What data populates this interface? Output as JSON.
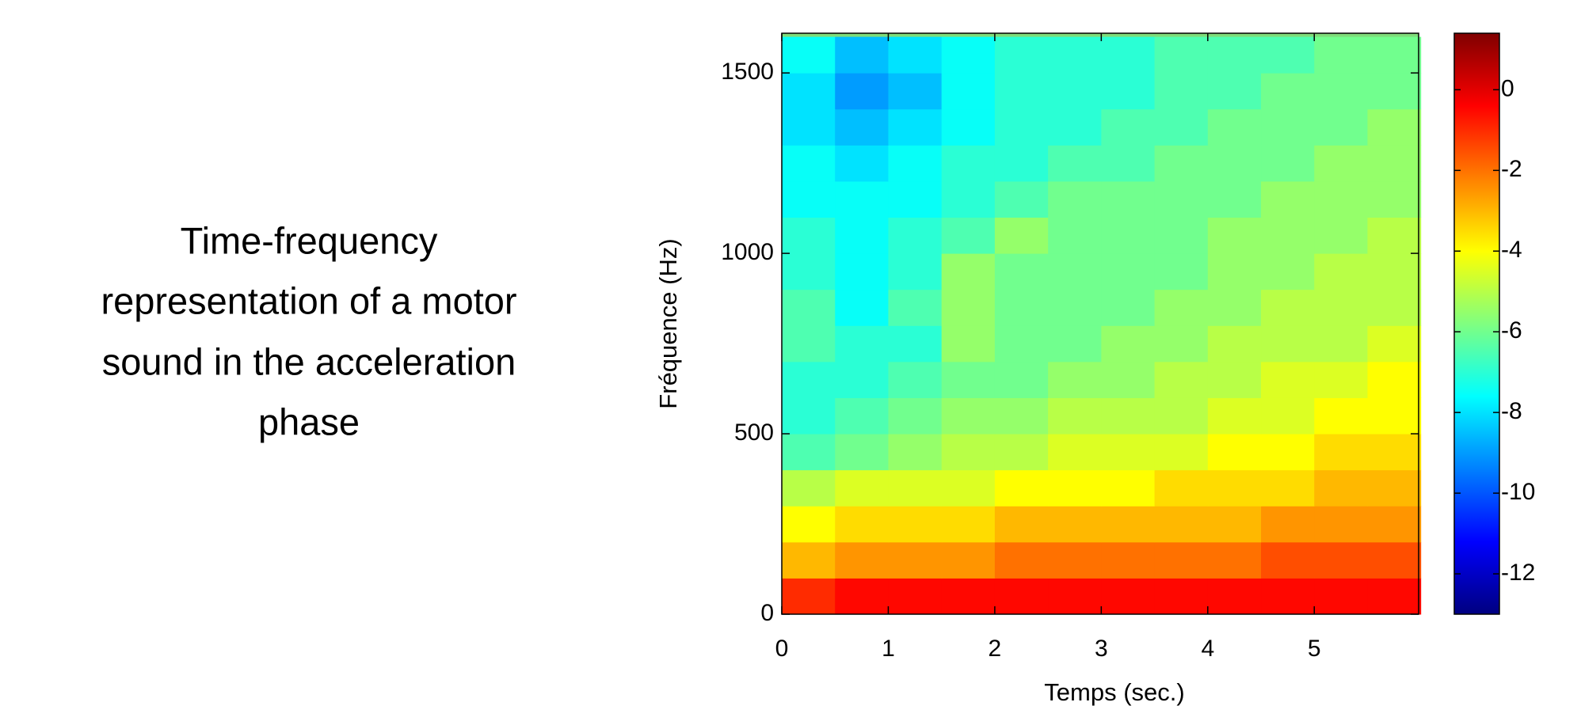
{
  "caption": [
    "Time-frequency",
    "representation of a motor",
    "sound in the acceleration",
    "phase"
  ],
  "chart_data": {
    "type": "heatmap",
    "colormap": "jet",
    "xlabel": "Temps (sec.)",
    "ylabel": "Fréquence (Hz)",
    "xlim": [
      0,
      5.98
    ],
    "ylim": [
      0,
      1610
    ],
    "xticks": [
      0,
      1,
      2,
      3,
      4,
      5
    ],
    "yticks": [
      0,
      500,
      1000,
      1500
    ],
    "x": [
      0.25,
      0.75,
      1.25,
      1.75,
      2.25,
      2.75,
      3.25,
      3.75,
      4.25,
      4.75,
      5.25,
      5.75
    ],
    "y": [
      50,
      150,
      250,
      350,
      450,
      550,
      650,
      750,
      850,
      950,
      1050,
      1150,
      1250,
      1350,
      1450,
      1550
    ],
    "z": [
      [
        -1,
        -0.5,
        -0.5,
        -0.5,
        -0.5,
        -0.5,
        -0.5,
        -0.5,
        -0.5,
        -0.5,
        -0.5,
        -0.5
      ],
      [
        -3,
        -2.5,
        -2.5,
        -2.5,
        -2,
        -2,
        -2,
        -2,
        -2,
        -1.5,
        -1.5,
        -1.5
      ],
      [
        -4,
        -3.5,
        -3.5,
        -3.5,
        -3,
        -3,
        -3,
        -3,
        -3,
        -2.5,
        -2.5,
        -2.5
      ],
      [
        -5,
        -4.5,
        -4.5,
        -4.5,
        -4,
        -4,
        -4,
        -3.5,
        -3.5,
        -3.5,
        -3,
        -3
      ],
      [
        -6.5,
        -6,
        -5.5,
        -5,
        -5,
        -4.5,
        -4.5,
        -4.5,
        -4,
        -4,
        -3.5,
        -3.5
      ],
      [
        -7,
        -6.5,
        -6,
        -5.5,
        -5.5,
        -5,
        -5,
        -5,
        -4.5,
        -4.5,
        -4,
        -4
      ],
      [
        -7,
        -7,
        -6.5,
        -6,
        -6,
        -5.5,
        -5.5,
        -5,
        -5,
        -4.5,
        -4.5,
        -4
      ],
      [
        -6.5,
        -7,
        -7,
        -5.5,
        -6,
        -6,
        -5.5,
        -5.5,
        -5,
        -5,
        -5,
        -4.5
      ],
      [
        -6.5,
        -7.5,
        -6.5,
        -5.5,
        -6,
        -6,
        -6,
        -5.5,
        -5.5,
        -5,
        -5,
        -5
      ],
      [
        -7,
        -7.5,
        -7,
        -5.5,
        -6,
        -6,
        -6,
        -6,
        -5.5,
        -5.5,
        -5,
        -5
      ],
      [
        -7,
        -7.5,
        -7,
        -6.5,
        -5.5,
        -6,
        -6,
        -6,
        -5.5,
        -5.5,
        -5.5,
        -5
      ],
      [
        -7.5,
        -7.5,
        -7.5,
        -7,
        -6.5,
        -6,
        -6,
        -6,
        -6,
        -5.5,
        -5.5,
        -5.5
      ],
      [
        -7.5,
        -8,
        -7.5,
        -7,
        -7,
        -6.5,
        -6.5,
        -6,
        -6,
        -6,
        -5.5,
        -5.5
      ],
      [
        -8,
        -8.5,
        -8,
        -7.5,
        -7,
        -7,
        -6.5,
        -6.5,
        -6,
        -6,
        -6,
        -5.5
      ],
      [
        -8,
        -9,
        -8.5,
        -7.5,
        -7,
        -7,
        -7,
        -6.5,
        -6.5,
        -6,
        -6,
        -6
      ],
      [
        -7.5,
        -8.5,
        -8,
        -7.5,
        -7,
        -7,
        -7,
        -6.5,
        -6.5,
        -6.5,
        -6,
        -6
      ]
    ],
    "colorbar": {
      "lim": [
        -13,
        1.4
      ],
      "ticks": [
        0,
        -2,
        -4,
        -6,
        -8,
        -10,
        -12
      ]
    }
  }
}
